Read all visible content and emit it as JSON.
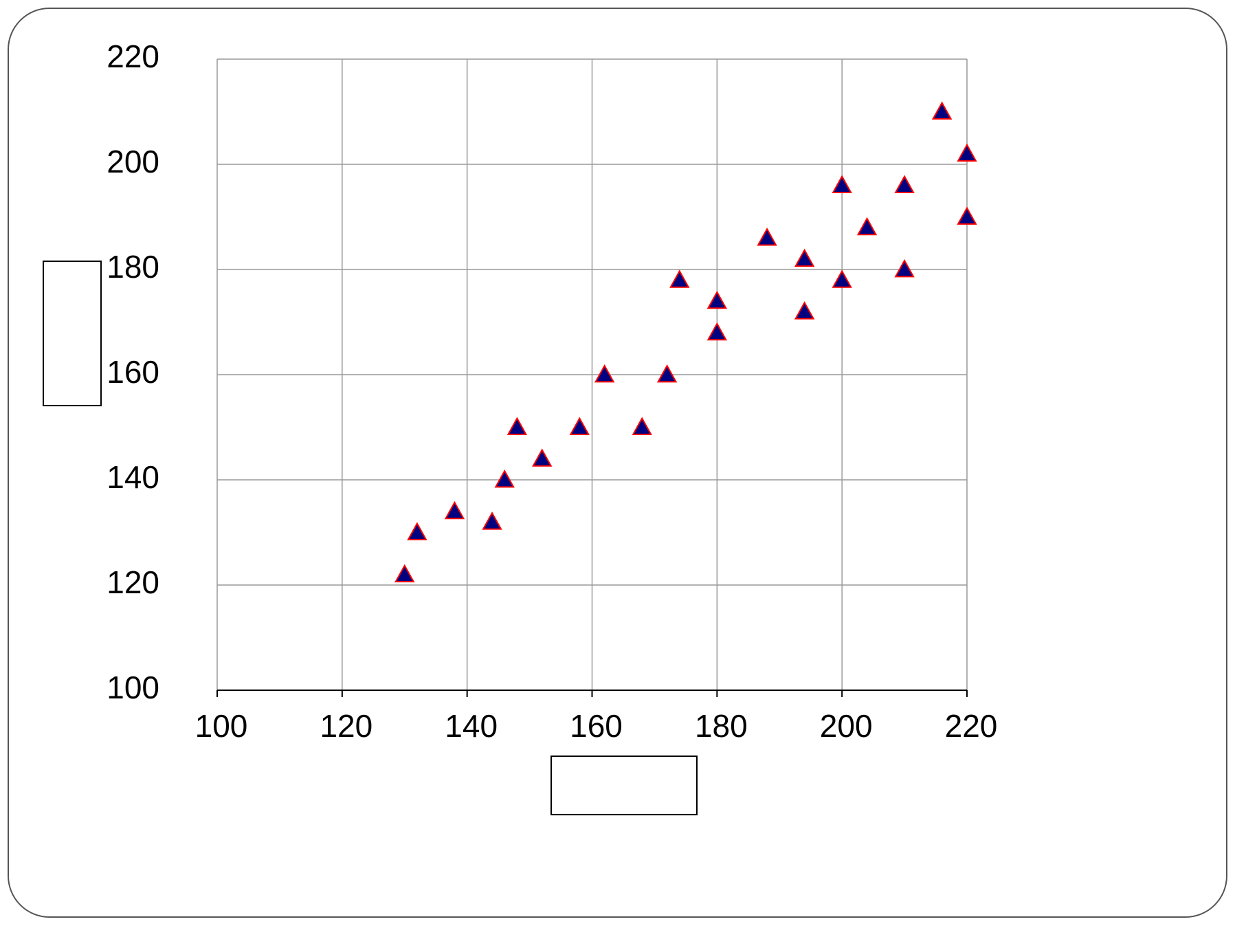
{
  "chart_data": {
    "type": "scatter",
    "x": [
      130,
      132,
      138,
      144,
      146,
      148,
      152,
      158,
      162,
      168,
      172,
      174,
      180,
      180,
      188,
      194,
      194,
      200,
      200,
      204,
      210,
      210,
      216,
      220,
      220
    ],
    "series": [
      {
        "color": "#000080",
        "values": [
          122,
          130,
          134,
          132,
          140,
          150,
          144,
          150,
          160,
          150,
          160,
          178,
          174,
          168,
          186,
          182,
          172,
          196,
          178,
          188,
          196,
          180,
          210,
          202,
          190
        ]
      }
    ],
    "marker_edge_color": "#ff0000",
    "xlim": [
      100,
      220
    ],
    "xticks": [
      100,
      120,
      140,
      160,
      180,
      200,
      220
    ],
    "ylim": [
      100,
      220
    ],
    "yticks": [
      100,
      120,
      140,
      160,
      180,
      200,
      220
    ],
    "grid": true
  }
}
